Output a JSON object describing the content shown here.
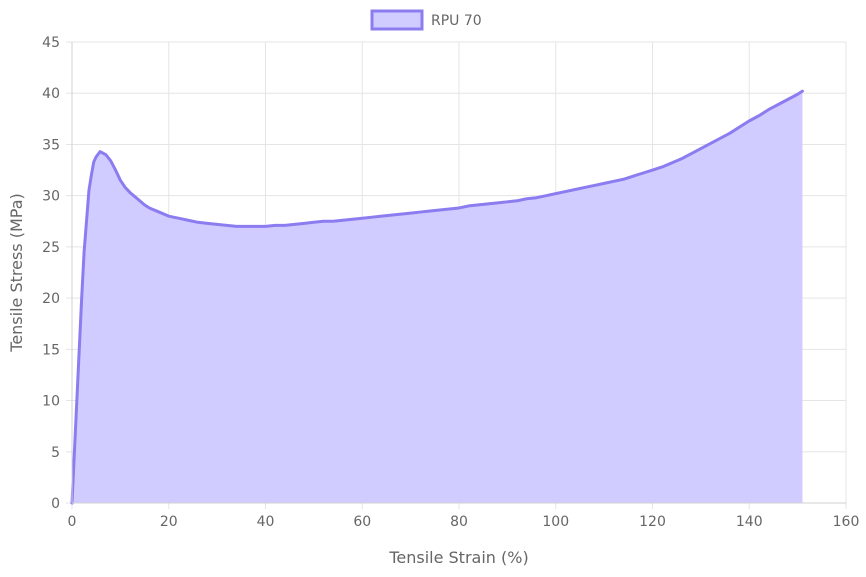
{
  "chart_data": {
    "type": "area",
    "xlabel": "Tensile Strain (%)",
    "ylabel": "Tensile Stress (MPa)",
    "xlim": [
      0,
      160
    ],
    "ylim": [
      0,
      45
    ],
    "x_ticks": [
      0,
      20,
      40,
      60,
      80,
      100,
      120,
      140,
      160
    ],
    "y_ticks": [
      0,
      5,
      10,
      15,
      20,
      25,
      30,
      35,
      40,
      45
    ],
    "grid": true,
    "legend_position": "top-center",
    "series": [
      {
        "name": "RPU 70",
        "line_color": "#8b7cf0",
        "fill_color": "#d0ccff",
        "points": [
          [
            0,
            0
          ],
          [
            0.5,
            5
          ],
          [
            1,
            10
          ],
          [
            1.5,
            15
          ],
          [
            2,
            20
          ],
          [
            2.5,
            24.5
          ],
          [
            3,
            27.5
          ],
          [
            3.5,
            30.5
          ],
          [
            4,
            32
          ],
          [
            4.5,
            33.3
          ],
          [
            5,
            33.8
          ],
          [
            5.8,
            34.3
          ],
          [
            7,
            34
          ],
          [
            8,
            33.4
          ],
          [
            9,
            32.5
          ],
          [
            10,
            31.5
          ],
          [
            11,
            30.8
          ],
          [
            12,
            30.3
          ],
          [
            13,
            29.9
          ],
          [
            14,
            29.5
          ],
          [
            15,
            29.1
          ],
          [
            16,
            28.8
          ],
          [
            18,
            28.4
          ],
          [
            20,
            28.0
          ],
          [
            22,
            27.8
          ],
          [
            24,
            27.6
          ],
          [
            26,
            27.4
          ],
          [
            28,
            27.3
          ],
          [
            30,
            27.2
          ],
          [
            32,
            27.1
          ],
          [
            34,
            27.0
          ],
          [
            36,
            27.0
          ],
          [
            38,
            27.0
          ],
          [
            40,
            27.0
          ],
          [
            42,
            27.1
          ],
          [
            44,
            27.1
          ],
          [
            46,
            27.2
          ],
          [
            48,
            27.3
          ],
          [
            50,
            27.4
          ],
          [
            52,
            27.5
          ],
          [
            54,
            27.5
          ],
          [
            56,
            27.6
          ],
          [
            58,
            27.7
          ],
          [
            60,
            27.8
          ],
          [
            62,
            27.9
          ],
          [
            64,
            28.0
          ],
          [
            66,
            28.1
          ],
          [
            68,
            28.2
          ],
          [
            70,
            28.3
          ],
          [
            72,
            28.4
          ],
          [
            74,
            28.5
          ],
          [
            76,
            28.6
          ],
          [
            78,
            28.7
          ],
          [
            80,
            28.8
          ],
          [
            82,
            29.0
          ],
          [
            84,
            29.1
          ],
          [
            86,
            29.2
          ],
          [
            88,
            29.3
          ],
          [
            90,
            29.4
          ],
          [
            92,
            29.5
          ],
          [
            94,
            29.7
          ],
          [
            96,
            29.8
          ],
          [
            98,
            30.0
          ],
          [
            100,
            30.2
          ],
          [
            102,
            30.4
          ],
          [
            104,
            30.6
          ],
          [
            106,
            30.8
          ],
          [
            108,
            31.0
          ],
          [
            110,
            31.2
          ],
          [
            112,
            31.4
          ],
          [
            114,
            31.6
          ],
          [
            116,
            31.9
          ],
          [
            118,
            32.2
          ],
          [
            120,
            32.5
          ],
          [
            122,
            32.8
          ],
          [
            124,
            33.2
          ],
          [
            126,
            33.6
          ],
          [
            128,
            34.1
          ],
          [
            130,
            34.6
          ],
          [
            132,
            35.1
          ],
          [
            134,
            35.6
          ],
          [
            136,
            36.1
          ],
          [
            138,
            36.7
          ],
          [
            140,
            37.3
          ],
          [
            142,
            37.8
          ],
          [
            144,
            38.4
          ],
          [
            146,
            38.9
          ],
          [
            148,
            39.4
          ],
          [
            150,
            39.9
          ],
          [
            151,
            40.2
          ]
        ]
      }
    ]
  }
}
